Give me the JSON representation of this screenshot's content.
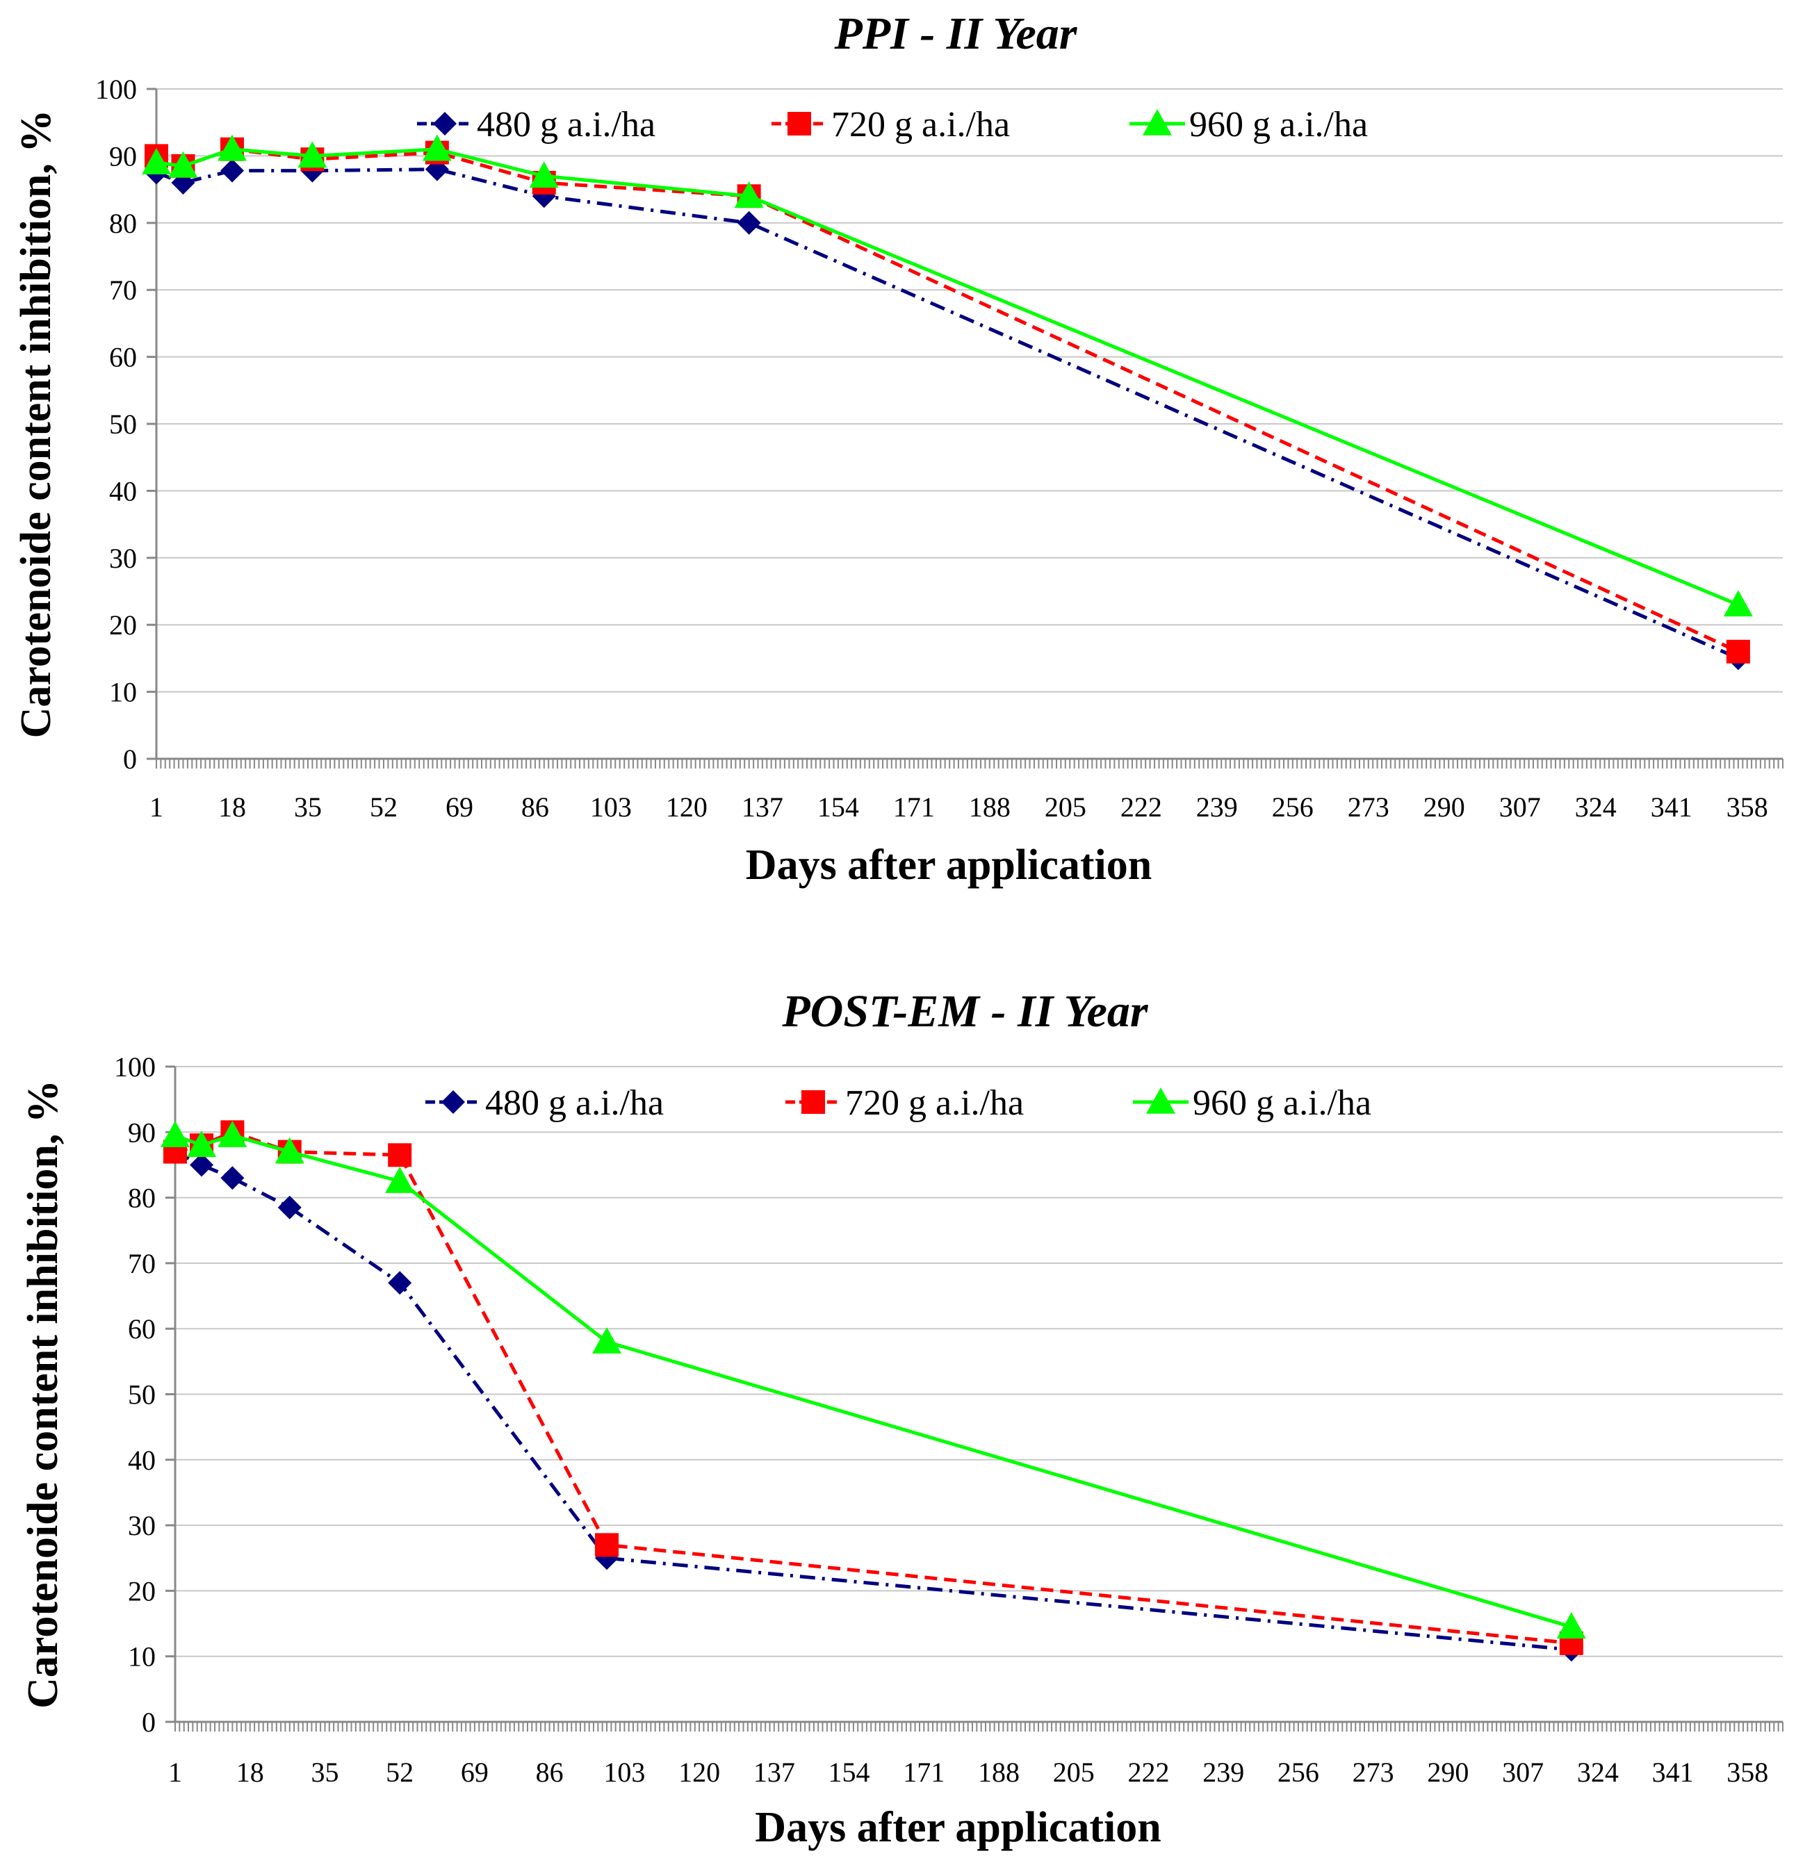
{
  "chart_data": [
    {
      "type": "line",
      "title": "PPI - II Year",
      "xlabel": "Days after application",
      "ylabel": "Carotenoide content inhibition, %",
      "xlim": [
        1,
        366
      ],
      "ylim": [
        0,
        100
      ],
      "x_ticks": [
        "1",
        "18",
        "35",
        "52",
        "69",
        "86",
        "103",
        "120",
        "137",
        "154",
        "171",
        "188",
        "205",
        "222",
        "239",
        "256",
        "273",
        "290",
        "307",
        "324",
        "341",
        "358"
      ],
      "y_ticks": [
        "0",
        "10",
        "20",
        "30",
        "40",
        "50",
        "60",
        "70",
        "80",
        "90",
        "100"
      ],
      "grid": true,
      "legend_position": "top",
      "series": [
        {
          "name": "480 g a.i./ha",
          "color": "#000080",
          "line_style": "dash-dot",
          "marker": "diamond",
          "x": [
            1,
            7,
            18,
            36,
            64,
            88,
            134,
            356
          ],
          "y": [
            87.5,
            86,
            87.8,
            87.8,
            88,
            84,
            80,
            15
          ]
        },
        {
          "name": "720 g a.i./ha",
          "color": "#ff0000",
          "line_style": "dashed",
          "marker": "square",
          "x": [
            1,
            7,
            18,
            36,
            64,
            88,
            134,
            356
          ],
          "y": [
            90,
            88.5,
            91,
            89.5,
            90.5,
            86,
            84,
            16
          ]
        },
        {
          "name": "960 g a.i./ha",
          "color": "#00ff00",
          "line_style": "solid",
          "marker": "triangle",
          "x": [
            1,
            7,
            18,
            36,
            64,
            88,
            134,
            356
          ],
          "y": [
            89,
            88.5,
            91,
            90,
            91,
            87,
            84,
            23
          ]
        }
      ]
    },
    {
      "type": "line",
      "title": "POST-EM - II Year",
      "xlabel": "Days after application",
      "ylabel": "Carotenoide content inhibition, %",
      "xlim": [
        1,
        366
      ],
      "ylim": [
        0,
        100
      ],
      "x_ticks": [
        "1",
        "18",
        "35",
        "52",
        "69",
        "86",
        "103",
        "120",
        "137",
        "154",
        "171",
        "188",
        "205",
        "222",
        "239",
        "256",
        "273",
        "290",
        "307",
        "324",
        "341",
        "358"
      ],
      "y_ticks": [
        "0",
        "10",
        "20",
        "30",
        "40",
        "50",
        "60",
        "70",
        "80",
        "90",
        "100"
      ],
      "grid": true,
      "legend_position": "top",
      "series": [
        {
          "name": "480 g a.i./ha",
          "color": "#000080",
          "line_style": "dash-dot",
          "marker": "diamond",
          "x": [
            1,
            7,
            14,
            27,
            52,
            99,
            318
          ],
          "y": [
            87,
            85,
            83,
            78.5,
            67,
            25,
            11
          ]
        },
        {
          "name": "720 g a.i./ha",
          "color": "#ff0000",
          "line_style": "dashed",
          "marker": "square",
          "x": [
            1,
            7,
            14,
            27,
            52,
            99,
            318
          ],
          "y": [
            87,
            88,
            90,
            87,
            86.5,
            27,
            12
          ]
        },
        {
          "name": "960 g a.i./ha",
          "color": "#00ff00",
          "line_style": "solid",
          "marker": "triangle",
          "x": [
            1,
            7,
            14,
            27,
            52,
            99,
            318
          ],
          "y": [
            89.5,
            88,
            89.5,
            87,
            82.5,
            58,
            14.5
          ]
        }
      ]
    }
  ]
}
